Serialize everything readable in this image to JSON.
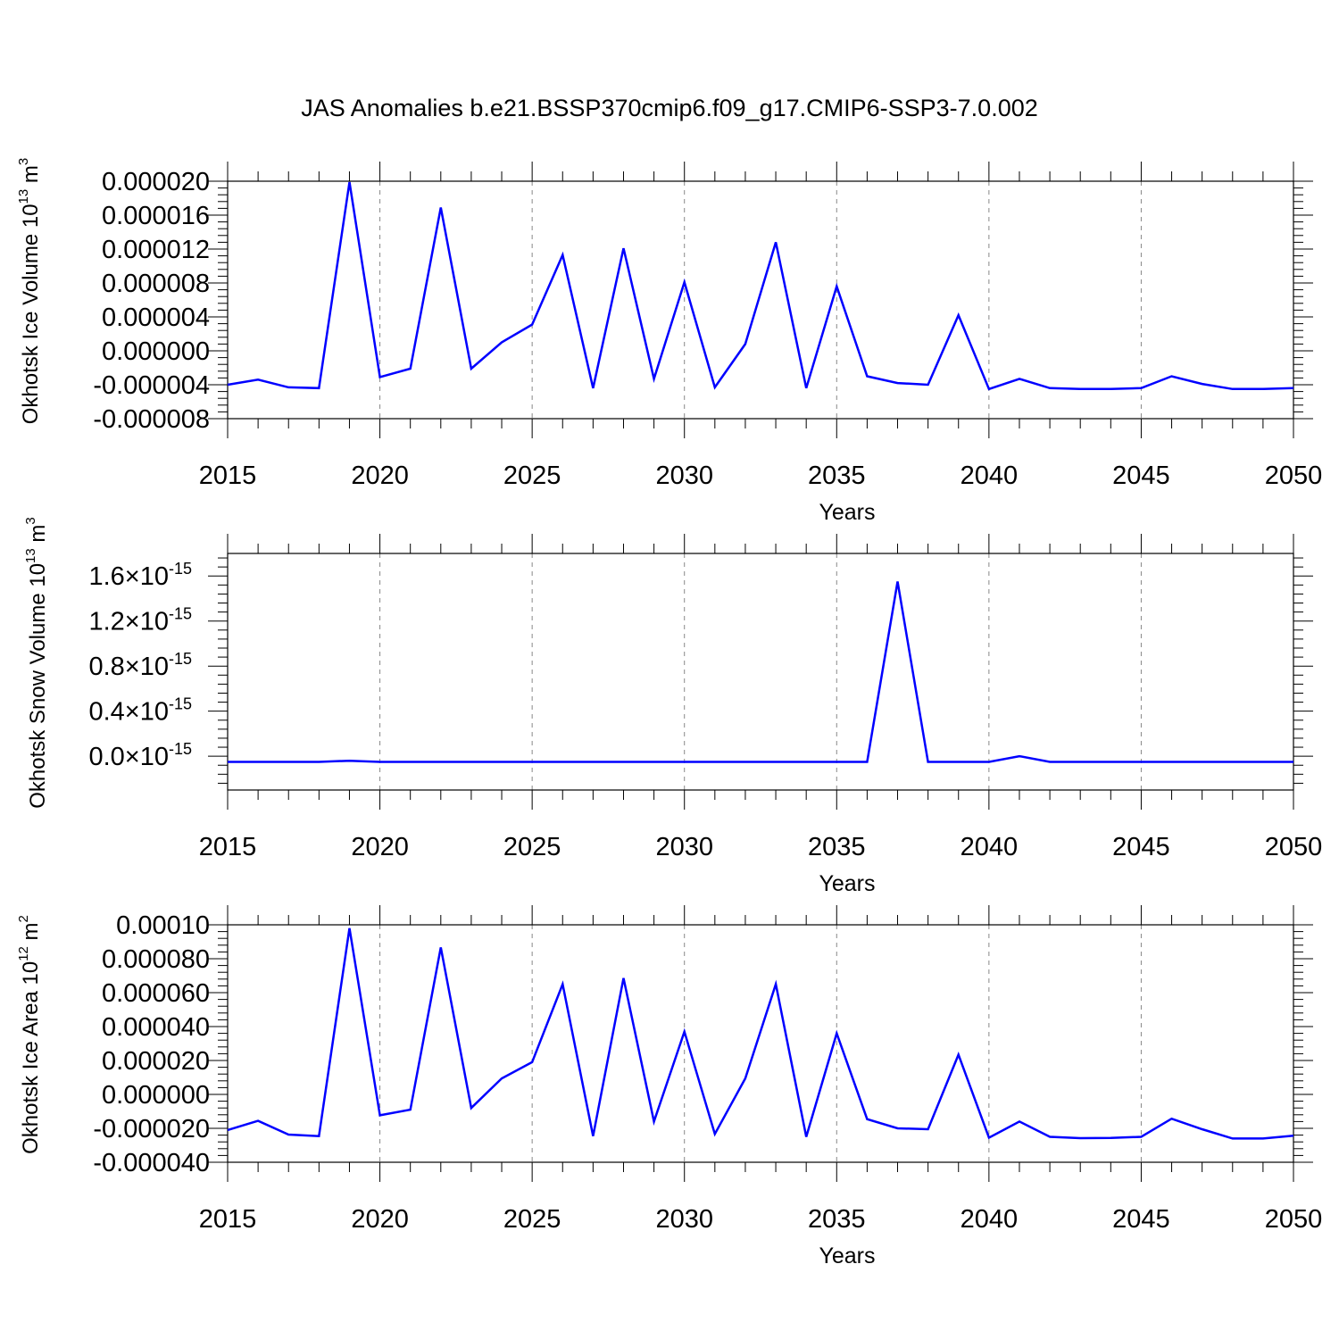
{
  "title": "JAS Anomalies b.e21.BSSP370cmip6.f09_g17.CMIP6-SSP3-7.0.002",
  "line_color": "#0000ff",
  "chart_data": [
    {
      "type": "line",
      "xlabel": "Years",
      "ylabel_text": "Okhotsk Ice Volume 10",
      "ylabel_exponent": "13",
      "ylabel_unit": " m",
      "ylabel_unit_exponent": "3",
      "xlim": [
        2015,
        2050
      ],
      "ylim": [
        -8e-06,
        2e-05
      ],
      "x_ticks": [
        2015,
        2020,
        2025,
        2030,
        2035,
        2040,
        2045,
        2050
      ],
      "x_tick_labels": [
        "2015",
        "2020",
        "2025",
        "2030",
        "2035",
        "2040",
        "2045",
        "2050"
      ],
      "y_ticks": [
        -8e-06,
        -4e-06,
        0.0,
        4e-06,
        8e-06,
        1.2e-05,
        1.6e-05,
        2e-05
      ],
      "y_tick_labels": [
        "-0.000008",
        "-0.000004",
        "0.000000",
        "0.000004",
        "0.000008",
        "0.000012",
        "0.000016",
        "0.000020"
      ],
      "grid": "vertical dashed at major x ticks",
      "series": [
        {
          "x": [
            2015,
            2016,
            2017,
            2018,
            2019,
            2020,
            2021,
            2022,
            2023,
            2024,
            2025,
            2026,
            2027,
            2028,
            2029,
            2030,
            2031,
            2032,
            2033,
            2034,
            2035,
            2036,
            2037,
            2038,
            2039,
            2040,
            2041,
            2042,
            2043,
            2044,
            2045,
            2046,
            2047,
            2048,
            2049,
            2050
          ],
          "values": [
            -4e-06,
            -3.4e-06,
            -4.3e-06,
            -4.4e-06,
            1.99e-05,
            -3.1e-06,
            -2.1e-06,
            1.69e-05,
            -2.1e-06,
            1e-06,
            3.1e-06,
            1.13e-05,
            -4.4e-06,
            1.21e-05,
            -3.3e-06,
            8.1e-06,
            -4.3e-06,
            8e-07,
            1.28e-05,
            -4.4e-06,
            7.6e-06,
            -3e-06,
            -3.8e-06,
            -4e-06,
            4.2e-06,
            -4.5e-06,
            -3.3e-06,
            -4.4e-06,
            -4.5e-06,
            -4.5e-06,
            -4.4e-06,
            -3e-06,
            -3.9e-06,
            -4.5e-06,
            -4.5e-06,
            -4.4e-06
          ]
        }
      ]
    },
    {
      "type": "line",
      "xlabel": "Years",
      "ylabel_text": "Okhotsk Snow Volume 10",
      "ylabel_exponent": "13",
      "ylabel_unit": " m",
      "ylabel_unit_exponent": "3",
      "xlim": [
        2015,
        2050
      ],
      "ylim": [
        -3e-16,
        1.8e-15
      ],
      "x_ticks": [
        2015,
        2020,
        2025,
        2030,
        2035,
        2040,
        2045,
        2050
      ],
      "x_tick_labels": [
        "2015",
        "2020",
        "2025",
        "2030",
        "2035",
        "2040",
        "2045",
        "2050"
      ],
      "y_ticks": [
        0.0,
        4e-16,
        8e-16,
        1.2e-15,
        1.6e-15
      ],
      "y_tick_mantissas": [
        "0.0",
        "0.4",
        "0.8",
        "1.2",
        "1.6"
      ],
      "y_tick_times": "×10",
      "y_tick_exponent": "-15",
      "grid": "vertical dashed at major x ticks",
      "series": [
        {
          "x": [
            2015,
            2016,
            2017,
            2018,
            2019,
            2020,
            2021,
            2022,
            2023,
            2024,
            2025,
            2026,
            2027,
            2028,
            2029,
            2030,
            2031,
            2032,
            2033,
            2034,
            2035,
            2036,
            2037,
            2038,
            2039,
            2040,
            2041,
            2042,
            2043,
            2044,
            2045,
            2046,
            2047,
            2048,
            2049,
            2050
          ],
          "values": [
            -5e-17,
            -5e-17,
            -5e-17,
            -5e-17,
            -4e-17,
            -5e-17,
            -5e-17,
            -5e-17,
            -5e-17,
            -5e-17,
            -5e-17,
            -5e-17,
            -5e-17,
            -5e-17,
            -5e-17,
            -5e-17,
            -5e-17,
            -5e-17,
            -5e-17,
            -5e-17,
            -5e-17,
            -5e-17,
            1.55e-15,
            -5e-17,
            -5e-17,
            -5e-17,
            0.0,
            -5e-17,
            -5e-17,
            -5e-17,
            -5e-17,
            -5e-17,
            -5e-17,
            -5e-17,
            -5e-17,
            -5e-17
          ]
        }
      ]
    },
    {
      "type": "line",
      "xlabel": "Years",
      "ylabel_text": "Okhotsk Ice Area 10",
      "ylabel_exponent": "12",
      "ylabel_unit": " m",
      "ylabel_unit_exponent": "2",
      "xlim": [
        2015,
        2050
      ],
      "ylim": [
        -4e-05,
        0.0001
      ],
      "x_ticks": [
        2015,
        2020,
        2025,
        2030,
        2035,
        2040,
        2045,
        2050
      ],
      "x_tick_labels": [
        "2015",
        "2020",
        "2025",
        "2030",
        "2035",
        "2040",
        "2045",
        "2050"
      ],
      "y_ticks": [
        -4e-05,
        -2e-05,
        0.0,
        2e-05,
        4e-05,
        6e-05,
        8e-05,
        0.0001
      ],
      "y_tick_labels": [
        "-0.000040",
        "-0.000020",
        "0.000000",
        "0.000020",
        "0.000040",
        "0.000060",
        "0.000080",
        "0.00010"
      ],
      "grid": "vertical dashed at major x ticks",
      "series": [
        {
          "x": [
            2015,
            2016,
            2017,
            2018,
            2019,
            2020,
            2021,
            2022,
            2023,
            2024,
            2025,
            2026,
            2027,
            2028,
            2029,
            2030,
            2031,
            2032,
            2033,
            2034,
            2035,
            2036,
            2037,
            2038,
            2039,
            2040,
            2041,
            2042,
            2043,
            2044,
            2045,
            2046,
            2047,
            2048,
            2049,
            2050
          ],
          "values": [
            -2.1e-05,
            -1.56e-05,
            -2.37e-05,
            -2.46e-05,
            9.8e-05,
            -1.23e-05,
            -9e-06,
            8.67e-05,
            -8e-06,
            9.4e-06,
            1.9e-05,
            6.5e-05,
            -2.46e-05,
            6.86e-05,
            -1.6e-05,
            3.7e-05,
            -2.33e-05,
            9.4e-06,
            6.5e-05,
            -2.5e-05,
            3.6e-05,
            -1.46e-05,
            -2e-05,
            -2.05e-05,
            2.34e-05,
            -2.55e-05,
            -1.6e-05,
            -2.5e-05,
            -2.58e-05,
            -2.57e-05,
            -2.5e-05,
            -1.43e-05,
            -2.05e-05,
            -2.6e-05,
            -2.6e-05,
            -2.43e-05
          ]
        }
      ]
    }
  ]
}
